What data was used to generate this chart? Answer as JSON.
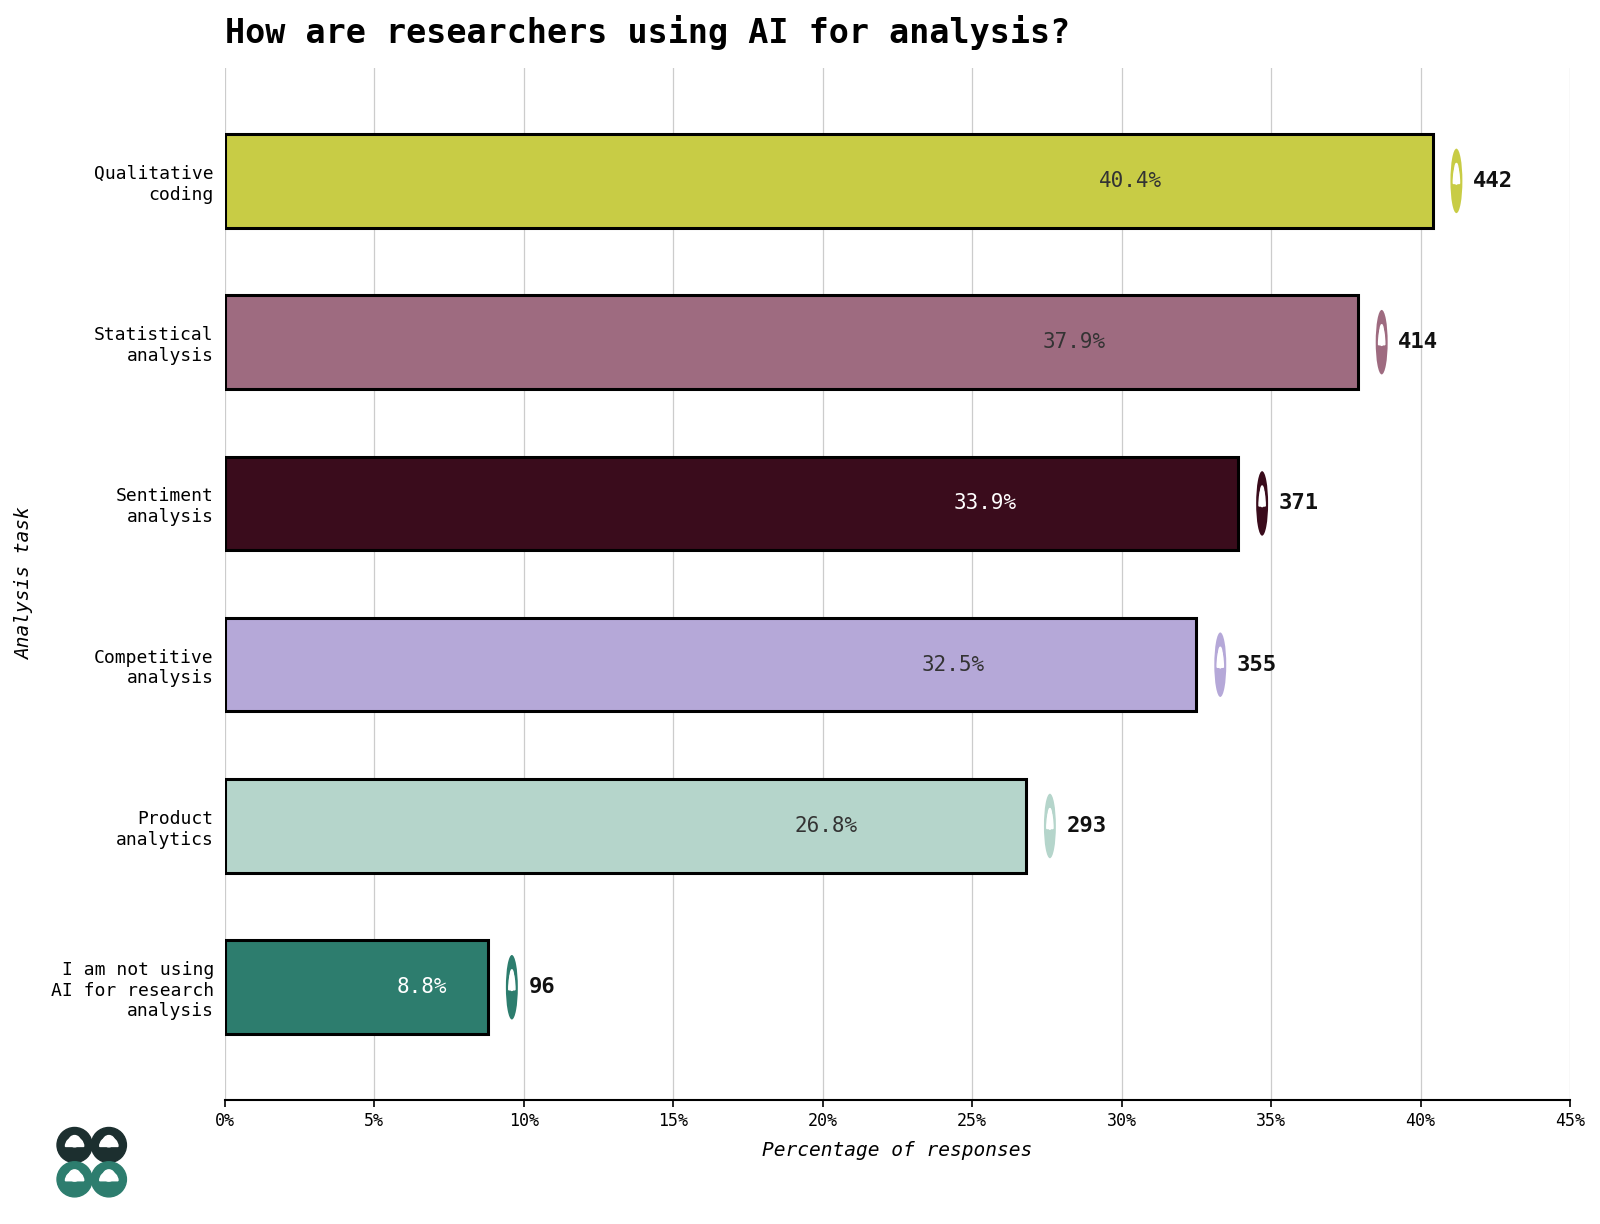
{
  "title": "How are researchers using AI for analysis?",
  "categories": [
    "I am not using\nAI for research\nanalysis",
    "Product\nanalytics",
    "Competitive\nanalysis",
    "Sentiment\nanalysis",
    "Statistical\nanalysis",
    "Qualitative\ncoding"
  ],
  "values": [
    8.8,
    26.8,
    32.5,
    33.9,
    37.9,
    40.4
  ],
  "counts": [
    96,
    293,
    355,
    371,
    414,
    442
  ],
  "bar_colors": [
    "#2d7d6e",
    "#b5d5cb",
    "#b5a8d8",
    "#3a0c1c",
    "#9e6b80",
    "#c8cc45"
  ],
  "pct_text_colors": [
    "#ffffff",
    "#333333",
    "#333333",
    "#ffffff",
    "#333333",
    "#333333"
  ],
  "icon_bg_colors": [
    "#2d7d6e",
    "#b5d5cb",
    "#b5a8d8",
    "#3a0c1c",
    "#9e6b80",
    "#c8cc45"
  ],
  "count_text_color": "#111111",
  "xlabel": "Percentage of responses",
  "ylabel": "Analysis task",
  "xlim": [
    0,
    45
  ],
  "xticks": [
    0,
    5,
    10,
    15,
    20,
    25,
    30,
    35,
    40,
    45
  ],
  "background_color": "#ffffff",
  "title_fontsize": 24,
  "bar_height": 0.58,
  "logo_colors": [
    "#1c2f2f",
    "#1c2f2f",
    "#2d7d6e",
    "#2d7d6e"
  ]
}
